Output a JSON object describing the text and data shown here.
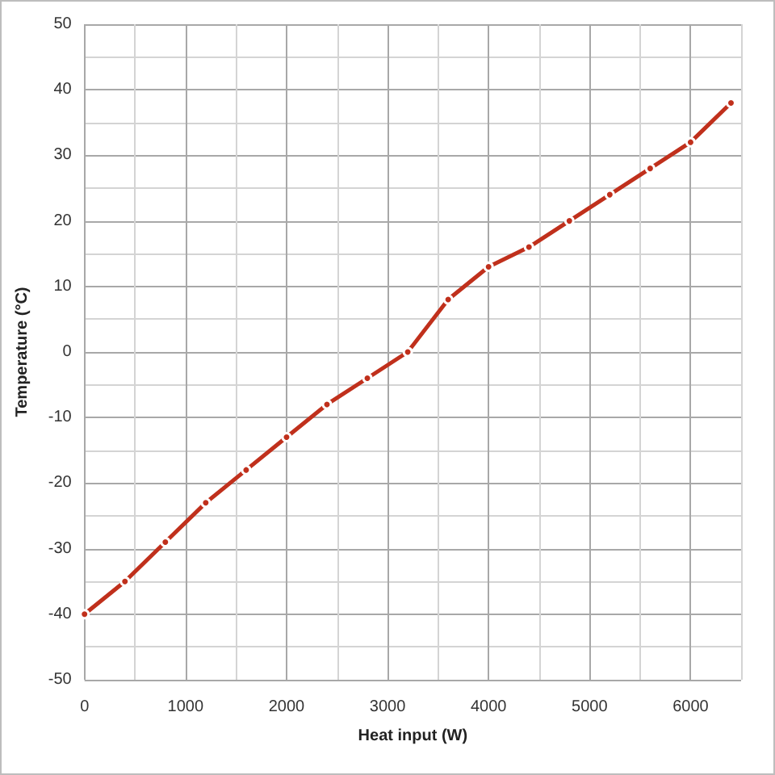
{
  "chart_data": {
    "type": "line",
    "xlabel": "Heat input (W)",
    "ylabel": "Temperature (°C)",
    "x": [
      0,
      400,
      800,
      1200,
      1600,
      2000,
      2400,
      2800,
      3200,
      3600,
      4000,
      4400,
      4800,
      5200,
      5600,
      6000,
      6400
    ],
    "series": [
      {
        "color": "#c0301c",
        "values": [
          -40,
          -35,
          -29,
          -23,
          -18,
          -13,
          -8,
          -4,
          0,
          8,
          13,
          16,
          20,
          24,
          28,
          32,
          38
        ]
      }
    ],
    "xlim": [
      0,
      6500
    ],
    "xticks": [
      0,
      {
        "value": 500,
        "label": null
      },
      1000,
      {
        "value": 1500,
        "label": null
      },
      2000,
      {
        "value": 2500,
        "label": null
      },
      3000,
      {
        "value": 3500,
        "label": null
      },
      4000,
      {
        "value": 4500,
        "label": null
      },
      5000,
      {
        "value": 5500,
        "label": null
      },
      6000,
      {
        "value": 6500,
        "label": null
      }
    ],
    "ylim": [
      -50,
      50
    ],
    "yticks": [
      -50,
      {
        "value": -45,
        "label": null
      },
      -40,
      {
        "value": -35,
        "label": null
      },
      -30,
      {
        "value": -25,
        "label": null
      },
      -20,
      {
        "value": -15,
        "label": null
      },
      -10,
      {
        "value": -5,
        "label": null
      },
      0,
      {
        "value": 5,
        "label": null
      },
      10,
      {
        "value": 15,
        "label": null
      },
      20,
      {
        "value": 25,
        "label": null
      },
      30,
      {
        "value": 35,
        "label": null
      },
      40,
      {
        "value": 45,
        "label": null
      },
      50
    ],
    "grid": true,
    "marker": "circle",
    "line_style": "solid"
  }
}
